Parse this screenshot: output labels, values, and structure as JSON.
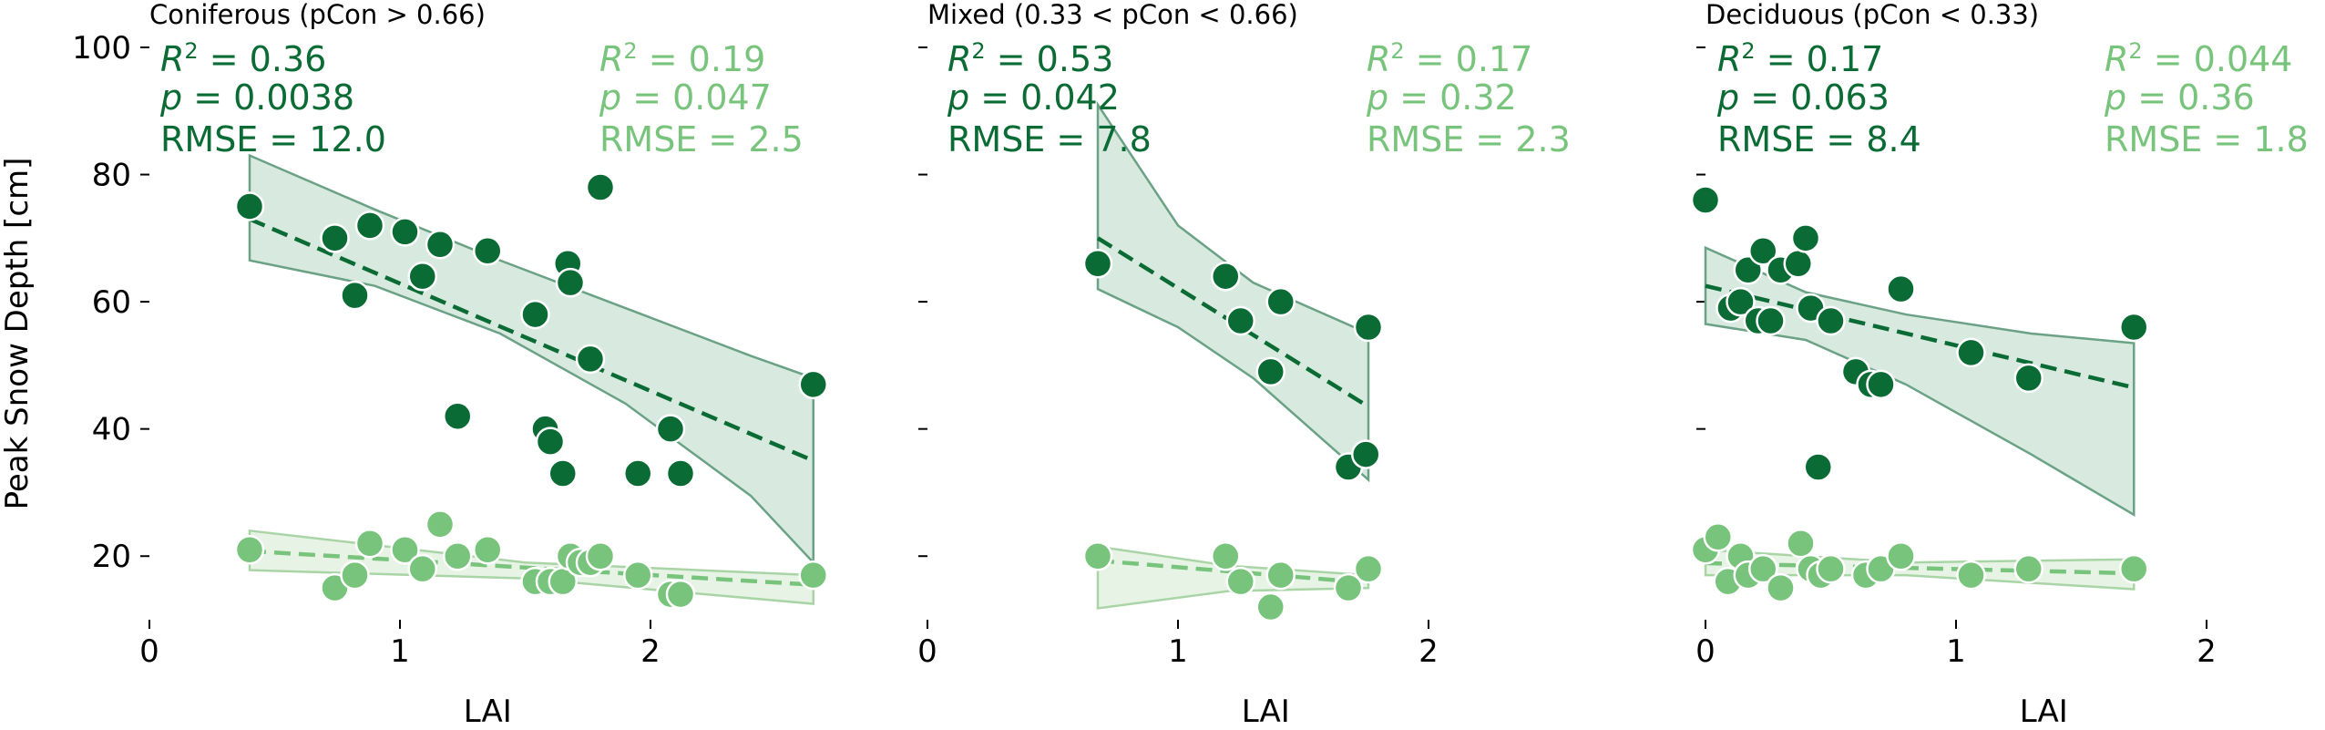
{
  "figure": {
    "ylabel": "Peak Snow Depth [cm]",
    "xlabel": "LAI"
  },
  "colors": {
    "dark": "#0b6b34",
    "light": "#79c47c",
    "band_dark_fill": "#d4e8dc",
    "band_dark_edge": "#6ba285",
    "band_light_fill": "#e4f3e2",
    "band_light_edge": "#a9d5a6",
    "marker_edge": "#ffffff",
    "axis": "#000000"
  },
  "chart_data": [
    {
      "type": "scatter",
      "title": "Coniferous (pCon > 0.66)",
      "xlabel": "LAI",
      "ylabel": "Peak Snow Depth [cm]",
      "xlim": [
        0,
        2.65
      ],
      "ylim": [
        10,
        100
      ],
      "xticks": [
        0,
        1,
        2
      ],
      "yticks": [
        20,
        40,
        60,
        80,
        100
      ],
      "grid": false,
      "series": [
        {
          "color_key": "dark",
          "x": [
            0.4,
            0.74,
            0.82,
            0.88,
            1.02,
            1.09,
            1.16,
            1.23,
            1.35,
            1.54,
            1.58,
            1.6,
            1.65,
            1.67,
            1.68,
            1.76,
            1.8,
            1.95,
            2.08,
            2.12,
            2.65
          ],
          "y": [
            75,
            70,
            61,
            72,
            71,
            64,
            69,
            42,
            68,
            58,
            40,
            38,
            33,
            66,
            63,
            51,
            78,
            33,
            40,
            33,
            47
          ],
          "fit": {
            "x": [
              0.4,
              2.65
            ],
            "y": [
              73,
              35
            ]
          },
          "band": {
            "x": [
              0.4,
              0.9,
              1.4,
              1.9,
              2.4,
              2.65
            ],
            "upper": [
              83,
              74.5,
              66.5,
              59,
              51.5,
              48
            ],
            "lower": [
              66.5,
              62.5,
              55,
              44,
              29.5,
              19
            ]
          },
          "stats": {
            "r2": "0.36",
            "p": "0.0038",
            "rmse": "12.0"
          }
        },
        {
          "color_key": "light",
          "x": [
            0.4,
            0.74,
            0.82,
            0.88,
            1.02,
            1.09,
            1.16,
            1.23,
            1.35,
            1.54,
            1.6,
            1.65,
            1.68,
            1.72,
            1.76,
            1.8,
            1.95,
            2.08,
            2.12,
            2.65
          ],
          "y": [
            21,
            15,
            17,
            22,
            21,
            18,
            25,
            20,
            21,
            16,
            16,
            16,
            20,
            19,
            19,
            20,
            17,
            14,
            14,
            17
          ],
          "fit": {
            "x": [
              0.4,
              2.65
            ],
            "y": [
              20.8,
              15.5
            ]
          },
          "band": {
            "x": [
              0.4,
              1.5,
              2.65
            ],
            "upper": [
              24,
              19,
              17
            ],
            "lower": [
              17.8,
              16.5,
              12.5
            ]
          },
          "stats": {
            "r2": "0.19",
            "p": "0.047",
            "rmse": "2.5"
          }
        }
      ]
    },
    {
      "type": "scatter",
      "title": "Mixed (0.33 < pCon < 0.66)",
      "xlabel": "LAI",
      "ylabel": "",
      "xlim": [
        0,
        2.65
      ],
      "ylim": [
        10,
        100
      ],
      "xticks": [
        0,
        1,
        2
      ],
      "yticks": [
        20,
        40,
        60,
        80,
        100
      ],
      "grid": false,
      "series": [
        {
          "color_key": "dark",
          "x": [
            0.68,
            1.19,
            1.25,
            1.37,
            1.41,
            1.68,
            1.75,
            1.76
          ],
          "y": [
            66,
            64,
            57,
            49,
            60,
            34,
            36,
            56
          ],
          "fit": {
            "x": [
              0.68,
              1.76
            ],
            "y": [
              70,
              43.5
            ]
          },
          "band": {
            "x": [
              0.68,
              1.0,
              1.3,
              1.76
            ],
            "upper": [
              91,
              72,
              63,
              55
            ],
            "lower": [
              62,
              56,
              48,
              32
            ]
          },
          "stats": {
            "r2": "0.53",
            "p": "0.042",
            "rmse": "7.8"
          }
        },
        {
          "color_key": "light",
          "x": [
            0.68,
            1.19,
            1.25,
            1.37,
            1.41,
            1.68,
            1.76
          ],
          "y": [
            20,
            20,
            16,
            12,
            17,
            15,
            18
          ],
          "fit": {
            "x": [
              0.68,
              1.76
            ],
            "y": [
              19.3,
              15.8
            ]
          },
          "band": {
            "x": [
              0.68,
              1.2,
              1.76
            ],
            "upper": [
              21.5,
              18.5,
              17
            ],
            "lower": [
              11.8,
              14.5,
              15
            ]
          },
          "stats": {
            "r2": "0.17",
            "p": "0.32",
            "rmse": "2.3"
          }
        }
      ]
    },
    {
      "type": "scatter",
      "title": "Deciduous (pCon < 0.33)",
      "xlabel": "LAI",
      "ylabel": "",
      "xlim": [
        0,
        2.65
      ],
      "ylim": [
        10,
        100
      ],
      "xticks": [
        0,
        1,
        2
      ],
      "yticks": [
        20,
        40,
        60,
        80,
        100
      ],
      "grid": false,
      "series": [
        {
          "color_key": "dark",
          "x": [
            0.0,
            0.1,
            0.14,
            0.17,
            0.21,
            0.23,
            0.26,
            0.3,
            0.37,
            0.4,
            0.42,
            0.45,
            0.5,
            0.6,
            0.66,
            0.7,
            0.78,
            1.06,
            1.29,
            1.71
          ],
          "y": [
            76,
            59,
            60,
            65,
            57,
            68,
            57,
            65,
            66,
            70,
            59,
            34,
            57,
            49,
            47,
            47,
            62,
            52,
            48,
            56
          ],
          "fit": {
            "x": [
              0.0,
              1.71
            ],
            "y": [
              62.5,
              46.5
            ]
          },
          "band": {
            "x": [
              0.0,
              0.4,
              0.8,
              1.3,
              1.71
            ],
            "upper": [
              68.5,
              61.5,
              58,
              55,
              53.5
            ],
            "lower": [
              56.5,
              54,
              47,
              36,
              26.5
            ]
          },
          "stats": {
            "r2": "0.17",
            "p": "0.063",
            "rmse": "8.4"
          }
        },
        {
          "color_key": "light",
          "x": [
            0.0,
            0.05,
            0.09,
            0.14,
            0.17,
            0.23,
            0.3,
            0.38,
            0.42,
            0.46,
            0.5,
            0.64,
            0.7,
            0.78,
            1.06,
            1.29,
            1.71
          ],
          "y": [
            21,
            23,
            16,
            20,
            17,
            18,
            15,
            22,
            18,
            17,
            18,
            17,
            18,
            20,
            17,
            18,
            18
          ],
          "fit": {
            "x": [
              0.0,
              1.71
            ],
            "y": [
              18.9,
              17.3
            ]
          },
          "band": {
            "x": [
              0.0,
              0.8,
              1.71
            ],
            "upper": [
              21,
              19,
              19.5
            ],
            "lower": [
              17,
              17,
              14.8
            ]
          },
          "stats": {
            "r2": "0.044",
            "p": "0.36",
            "rmse": "1.8"
          }
        }
      ]
    }
  ]
}
